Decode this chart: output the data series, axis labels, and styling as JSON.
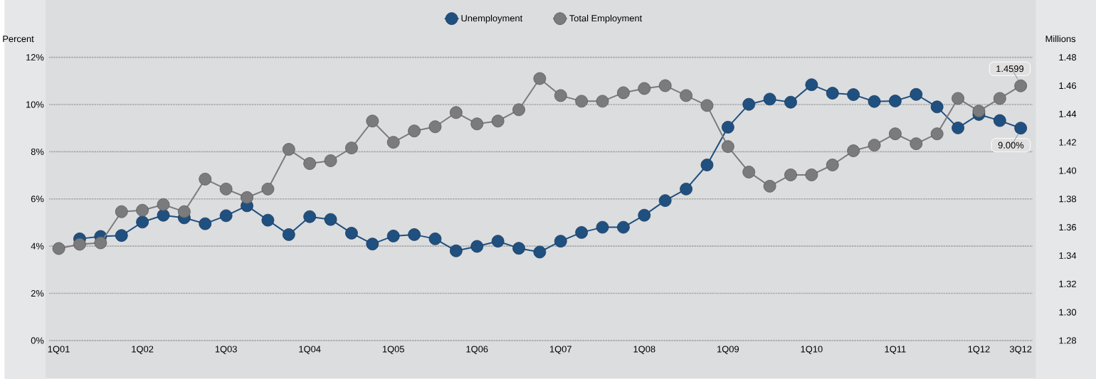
{
  "chart_data": {
    "type": "line",
    "ylabel": "Percent",
    "y2label": "Millions",
    "categories": [
      "1Q01",
      null,
      null,
      null,
      "1Q02",
      null,
      null,
      null,
      "1Q03",
      null,
      null,
      null,
      "1Q04",
      null,
      null,
      null,
      "1Q05",
      null,
      null,
      null,
      "1Q06",
      null,
      null,
      null,
      "1Q07",
      null,
      null,
      null,
      "1Q08",
      null,
      null,
      null,
      "1Q09",
      null,
      null,
      null,
      "1Q10",
      null,
      null,
      null,
      "1Q11",
      null,
      null,
      null,
      "1Q12",
      null,
      "3Q12"
    ],
    "series": [
      {
        "name": "Unemployment",
        "color": "#1f5080",
        "values": [
          null,
          4.31,
          4.41,
          4.45,
          5.02,
          5.31,
          5.2,
          4.95,
          5.29,
          5.71,
          5.1,
          4.49,
          5.25,
          5.13,
          4.55,
          4.09,
          4.43,
          4.49,
          4.31,
          3.8,
          3.99,
          4.21,
          3.91,
          3.75,
          4.21,
          4.58,
          4.8,
          4.8,
          5.31,
          5.93,
          6.42,
          7.44,
          9.04,
          10.01,
          10.23,
          10.1,
          10.84,
          10.48,
          10.42,
          10.13,
          10.15,
          10.43,
          9.9,
          9.01,
          9.58,
          9.32,
          9.0
        ],
        "value_labels": [
          null,
          null,
          null,
          null,
          null,
          null,
          null,
          null,
          null,
          null,
          null,
          null,
          null,
          null,
          null,
          null,
          null,
          null,
          null,
          null,
          null,
          null,
          null,
          null,
          null,
          null,
          null,
          null,
          null,
          null,
          null,
          null,
          null,
          null,
          null,
          null,
          null,
          null,
          null,
          null,
          null,
          null,
          null,
          null,
          null,
          null,
          "9.00%"
        ]
      },
      {
        "name": "Total Employment",
        "color": "#7b7b7d",
        "axis": "y2",
        "values": [
          1.345,
          1.348,
          1.349,
          1.371,
          1.372,
          1.376,
          1.371,
          1.394,
          1.387,
          1.381,
          1.387,
          1.415,
          1.405,
          1.407,
          1.416,
          1.435,
          1.42,
          1.428,
          1.431,
          1.441,
          1.433,
          1.435,
          1.443,
          1.465,
          1.453,
          1.449,
          1.449,
          1.455,
          1.458,
          1.46,
          1.453,
          1.446,
          1.417,
          1.399,
          1.389,
          1.397,
          1.397,
          1.404,
          1.414,
          1.418,
          1.426,
          1.419,
          1.426,
          1.451,
          1.442,
          1.451,
          1.4599
        ],
        "value_labels": [
          null,
          null,
          null,
          null,
          null,
          null,
          null,
          null,
          null,
          null,
          null,
          null,
          null,
          null,
          null,
          null,
          null,
          null,
          null,
          null,
          null,
          null,
          null,
          null,
          null,
          null,
          null,
          null,
          null,
          null,
          null,
          null,
          null,
          null,
          null,
          null,
          null,
          null,
          null,
          null,
          null,
          null,
          null,
          null,
          null,
          null,
          "1.4599"
        ]
      }
    ],
    "ylim": [
      0,
      12
    ],
    "yticks": [
      {
        "value": 0,
        "label": "0%"
      },
      {
        "value": 2,
        "label": "2%"
      },
      {
        "value": 4,
        "label": "4%"
      },
      {
        "value": 6,
        "label": "6%"
      },
      {
        "value": 8,
        "label": "8%"
      },
      {
        "value": 10,
        "label": "10%"
      },
      {
        "value": 12,
        "label": "12%"
      }
    ],
    "y2lim": [
      1.28,
      1.48
    ],
    "y2ticks": [
      {
        "value": 1.28,
        "label": "1.28"
      },
      {
        "value": 1.3,
        "label": "1.30"
      },
      {
        "value": 1.32,
        "label": "1.32"
      },
      {
        "value": 1.34,
        "label": "1.34"
      },
      {
        "value": 1.36,
        "label": "1.36"
      },
      {
        "value": 1.38,
        "label": "1.38"
      },
      {
        "value": 1.4,
        "label": "1.40"
      },
      {
        "value": 1.42,
        "label": "1.42"
      },
      {
        "value": 1.44,
        "label": "1.44"
      },
      {
        "value": 1.46,
        "label": "1.46"
      },
      {
        "value": 1.48,
        "label": "1.48"
      }
    ],
    "grid": "y",
    "legend": "top",
    "marker": "circle",
    "line_style": "solid"
  }
}
